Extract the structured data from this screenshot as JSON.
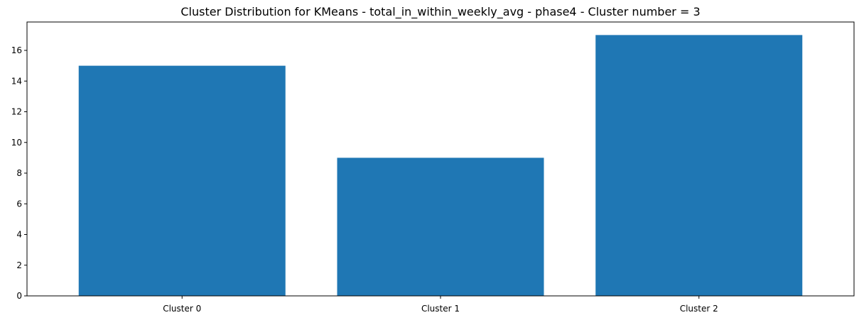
{
  "chart_data": {
    "type": "bar",
    "title": "Cluster Distribution for KMeans - total_in_within_weekly_avg - phase4 - Cluster number = 3",
    "xlabel": "",
    "ylabel": "",
    "categories": [
      "Cluster 0",
      "Cluster 1",
      "Cluster 2"
    ],
    "values": [
      15,
      9,
      17
    ],
    "ylim": [
      0,
      17.85
    ],
    "yticks": [
      0,
      2,
      4,
      6,
      8,
      10,
      12,
      14,
      16
    ],
    "bar_color": "#1f77b4",
    "grid": false,
    "legend": "none"
  }
}
